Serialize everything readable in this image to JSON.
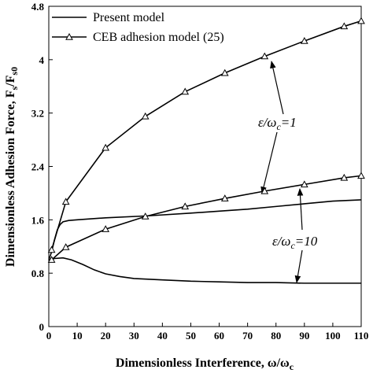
{
  "chart_data": {
    "type": "line",
    "x_label": [
      "Dimensionless Interference, ω/ω",
      "c"
    ],
    "y_label": [
      "Dimensionless Adhesion Force, F",
      "s",
      "/F",
      "s0"
    ],
    "xlim": [
      0,
      110
    ],
    "xticks": [
      0,
      10,
      20,
      30,
      40,
      50,
      60,
      70,
      80,
      90,
      100,
      110
    ],
    "ylim": [
      0,
      4.8
    ],
    "yticks": [
      0,
      0.8,
      1.6,
      2.4,
      3.2,
      4,
      4.8
    ],
    "series": [
      {
        "name": "Present model",
        "color": "#000000",
        "marker": "none",
        "curves": [
          {
            "x": [
              0,
              1,
              2,
              3,
              4,
              5,
              7,
              10,
              20,
              35,
              50,
              60,
              70,
              80,
              90,
              100,
              110
            ],
            "values": [
              1.0,
              1.12,
              1.3,
              1.45,
              1.53,
              1.57,
              1.59,
              1.6,
              1.63,
              1.66,
              1.7,
              1.73,
              1.76,
              1.8,
              1.84,
              1.88,
              1.9
            ]
          },
          {
            "x": [
              0,
              2,
              5,
              8,
              12,
              16,
              20,
              25,
              30,
              40,
              50,
              60,
              70,
              80,
              90,
              100,
              110
            ],
            "values": [
              1.0,
              1.02,
              1.03,
              1.0,
              0.93,
              0.85,
              0.79,
              0.75,
              0.72,
              0.7,
              0.68,
              0.67,
              0.66,
              0.66,
              0.65,
              0.65,
              0.65
            ]
          }
        ]
      },
      {
        "name": "CEB adhesion model (25)",
        "color": "#000000",
        "marker": "triangle",
        "curves": [
          {
            "x": [
              1,
              6,
              20,
              34,
              48,
              62,
              76,
              90,
              104,
              110
            ],
            "values": [
              1.15,
              1.87,
              2.68,
              3.15,
              3.52,
              3.8,
              4.05,
              4.28,
              4.5,
              4.58
            ]
          },
          {
            "x": [
              1,
              6,
              20,
              34,
              48,
              62,
              76,
              90,
              104,
              110
            ],
            "values": [
              1.0,
              1.19,
              1.46,
              1.65,
              1.8,
              1.92,
              2.03,
              2.13,
              2.23,
              2.26
            ]
          }
        ]
      }
    ],
    "annotations": [
      {
        "parts": [
          "ε/ω",
          "c",
          "=1"
        ]
      },
      {
        "parts": [
          "ε/ω",
          "c",
          "=10"
        ]
      }
    ]
  }
}
